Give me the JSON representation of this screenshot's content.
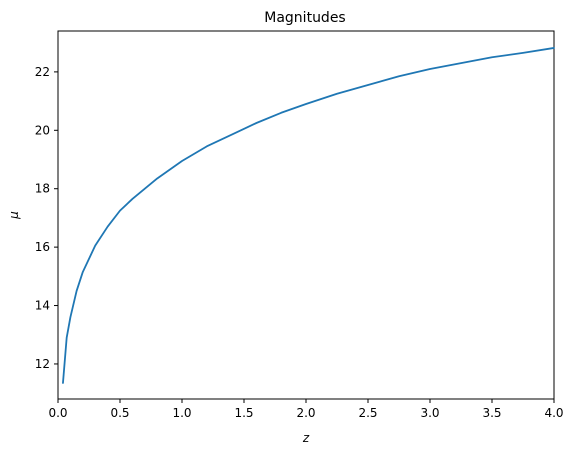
{
  "chart_data": {
    "type": "line",
    "title": "Magnitudes",
    "xlabel": "z",
    "ylabel": "μ",
    "xlim": [
      0.0,
      4.0
    ],
    "ylim": [
      10.8,
      23.4
    ],
    "grid": false,
    "legend": "none",
    "x_ticks": [
      "0.0",
      "0.5",
      "1.0",
      "1.5",
      "2.0",
      "2.5",
      "3.0",
      "3.5",
      "4.0"
    ],
    "y_ticks": [
      "12",
      "14",
      "16",
      "18",
      "20",
      "22"
    ],
    "series": [
      {
        "color": "#1f77b4",
        "points": [
          [
            0.04,
            11.35
          ],
          [
            0.07,
            12.9
          ],
          [
            0.1,
            13.6
          ],
          [
            0.15,
            14.5
          ],
          [
            0.2,
            15.15
          ],
          [
            0.3,
            16.05
          ],
          [
            0.4,
            16.7
          ],
          [
            0.5,
            17.25
          ],
          [
            0.6,
            17.65
          ],
          [
            0.7,
            18.0
          ],
          [
            0.8,
            18.35
          ],
          [
            1.0,
            18.95
          ],
          [
            1.2,
            19.45
          ],
          [
            1.4,
            19.85
          ],
          [
            1.6,
            20.25
          ],
          [
            1.8,
            20.6
          ],
          [
            2.0,
            20.9
          ],
          [
            2.25,
            21.25
          ],
          [
            2.5,
            21.55
          ],
          [
            2.75,
            21.85
          ],
          [
            3.0,
            22.1
          ],
          [
            3.25,
            22.3
          ],
          [
            3.5,
            22.5
          ],
          [
            3.75,
            22.65
          ],
          [
            4.0,
            22.82
          ]
        ]
      }
    ]
  }
}
